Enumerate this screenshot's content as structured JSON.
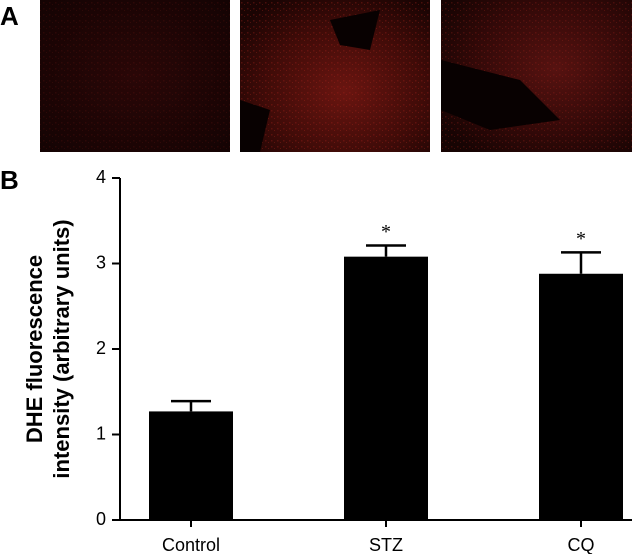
{
  "panels": {
    "a_label": "A",
    "b_label": "B"
  },
  "chart_data": {
    "type": "bar",
    "y_label": [
      "DHE fluorescence",
      "intensity (arbitrary units)"
    ],
    "categories": [
      "Control",
      "STZ",
      "CQ"
    ],
    "values": [
      1.27,
      3.08,
      2.88
    ],
    "errors": [
      0.12,
      0.13,
      0.25
    ],
    "annotations": [
      null,
      "*",
      "*"
    ],
    "color": "#000000",
    "ylim": [
      0,
      4
    ],
    "yticks": [
      0,
      1,
      2,
      3,
      4
    ],
    "grid": false
  }
}
